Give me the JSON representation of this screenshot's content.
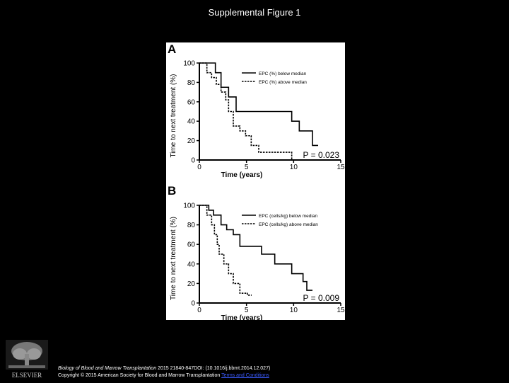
{
  "slide": {
    "title": "Supplemental Figure 1"
  },
  "chart_data": [
    {
      "type": "line",
      "panel_label": "A",
      "xlabel": "Time (years)",
      "ylabel": "Time to next treatment (%)",
      "xlim": [
        0,
        15
      ],
      "ylim": [
        0,
        100
      ],
      "xticks": [
        0,
        5,
        10,
        15
      ],
      "yticks": [
        0,
        20,
        40,
        60,
        80,
        100
      ],
      "p_value": "P = 0.023",
      "legend_position": "top-right",
      "series": [
        {
          "name": "EPC (%) below median",
          "style": "solid",
          "x": [
            0,
            1.7,
            2.3,
            3.1,
            3.9,
            9.8,
            10.6,
            12.0
          ],
          "y": [
            100,
            90,
            75,
            65,
            50,
            40,
            30,
            15
          ]
        },
        {
          "name": "EPC (%) above median",
          "style": "dashed",
          "x": [
            0,
            0.8,
            1.3,
            1.8,
            2.3,
            2.8,
            3.1,
            3.6,
            4.3,
            4.9,
            5.5,
            6.3,
            9.8
          ],
          "y": [
            100,
            90,
            85,
            78,
            70,
            62,
            50,
            35,
            30,
            25,
            15,
            8,
            0
          ]
        }
      ]
    },
    {
      "type": "line",
      "panel_label": "B",
      "xlabel": "Time (years)",
      "ylabel": "Time to next treatment (%)",
      "xlim": [
        0,
        15
      ],
      "ylim": [
        0,
        100
      ],
      "xticks": [
        0,
        5,
        10,
        15
      ],
      "yticks": [
        0,
        20,
        40,
        60,
        80,
        100
      ],
      "p_value": "P = 0.009",
      "legend_position": "top-right",
      "series": [
        {
          "name": "EPC (cells/kg) below median",
          "style": "solid",
          "x": [
            0,
            1.0,
            1.5,
            2.3,
            2.9,
            3.6,
            4.3,
            6.6,
            8.0,
            9.8,
            11.0,
            11.4
          ],
          "y": [
            100,
            95,
            90,
            80,
            75,
            70,
            58,
            50,
            40,
            30,
            22,
            13
          ]
        },
        {
          "name": "EPC (cells/kg) above median",
          "style": "dashed",
          "x": [
            0,
            0.8,
            1.3,
            1.6,
            1.9,
            2.1,
            2.6,
            3.1,
            3.6,
            4.3,
            5.1
          ],
          "y": [
            100,
            90,
            80,
            70,
            60,
            50,
            40,
            30,
            20,
            10,
            8
          ]
        }
      ]
    }
  ],
  "footer": {
    "logo_text": "ELSEVIER",
    "journal": "Biology of Blood and Marrow Transplantation",
    "citation": " 2015 21840-847DOI: (10.1016/j.bbmt.2014.12.027)",
    "copyright": "Copyright © 2015 American Society for Blood and Marrow Transplantation ",
    "terms": "Terms and Conditions"
  }
}
